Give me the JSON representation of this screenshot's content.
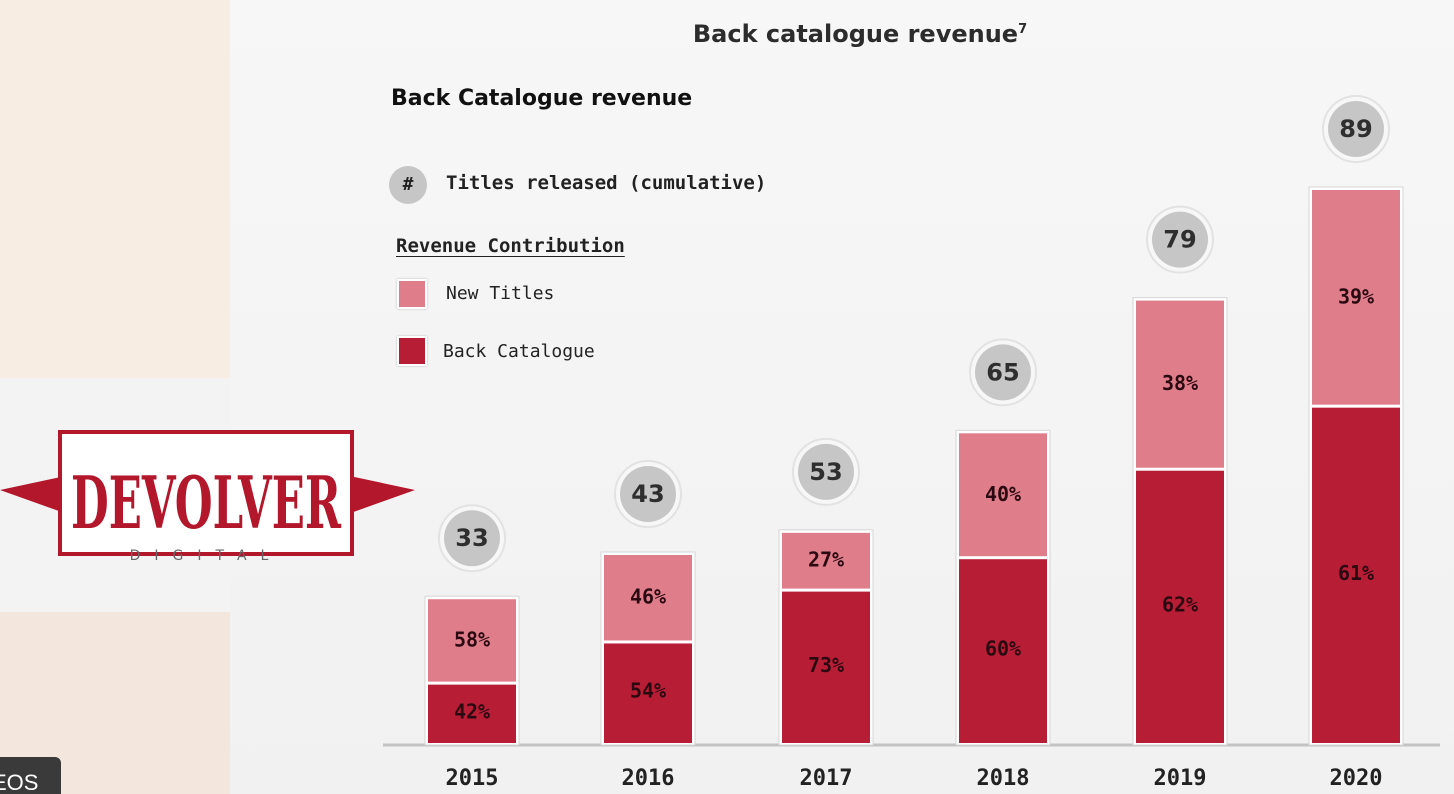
{
  "slide": {
    "title": "Back catalogue revenue",
    "title_footnote": "7"
  },
  "logo": {
    "name": "DEVOLVER",
    "sub": "DIGITAL",
    "color": "#b3172c"
  },
  "legend": {
    "titles_symbol": "#",
    "titles_label": "Titles released (cumulative)",
    "revenue_heading": "Revenue Contribution",
    "items": [
      {
        "label": "New Titles",
        "color": "#e07d8b"
      },
      {
        "label": "Back Catalogue",
        "color": "#b81d36"
      }
    ]
  },
  "watermark": {
    "text": "EOS"
  },
  "chart_data": {
    "type": "bar",
    "stacked": true,
    "title": "Back Catalogue revenue",
    "categories": [
      "2015",
      "2016",
      "2017",
      "2018",
      "2019",
      "2020"
    ],
    "series": [
      {
        "name": "Back Catalogue",
        "values": [
          42,
          54,
          73,
          60,
          62,
          61
        ],
        "labels": [
          "42%",
          "54%",
          "73%",
          "60%",
          "62%",
          "61%"
        ],
        "color": "#b81d36"
      },
      {
        "name": "New Titles",
        "values": [
          58,
          46,
          27,
          40,
          38,
          39
        ],
        "labels": [
          "58%",
          "46%",
          "27%",
          "40%",
          "38%",
          "39%"
        ],
        "color": "#e07d8b"
      }
    ],
    "titles_released": [
      33,
      43,
      53,
      65,
      79,
      89
    ],
    "relative_total": [
      0.26,
      0.34,
      0.38,
      0.56,
      0.8,
      1.0
    ],
    "axis_color": "#c3c3c3",
    "bubble_color": "#c6c6c6"
  }
}
